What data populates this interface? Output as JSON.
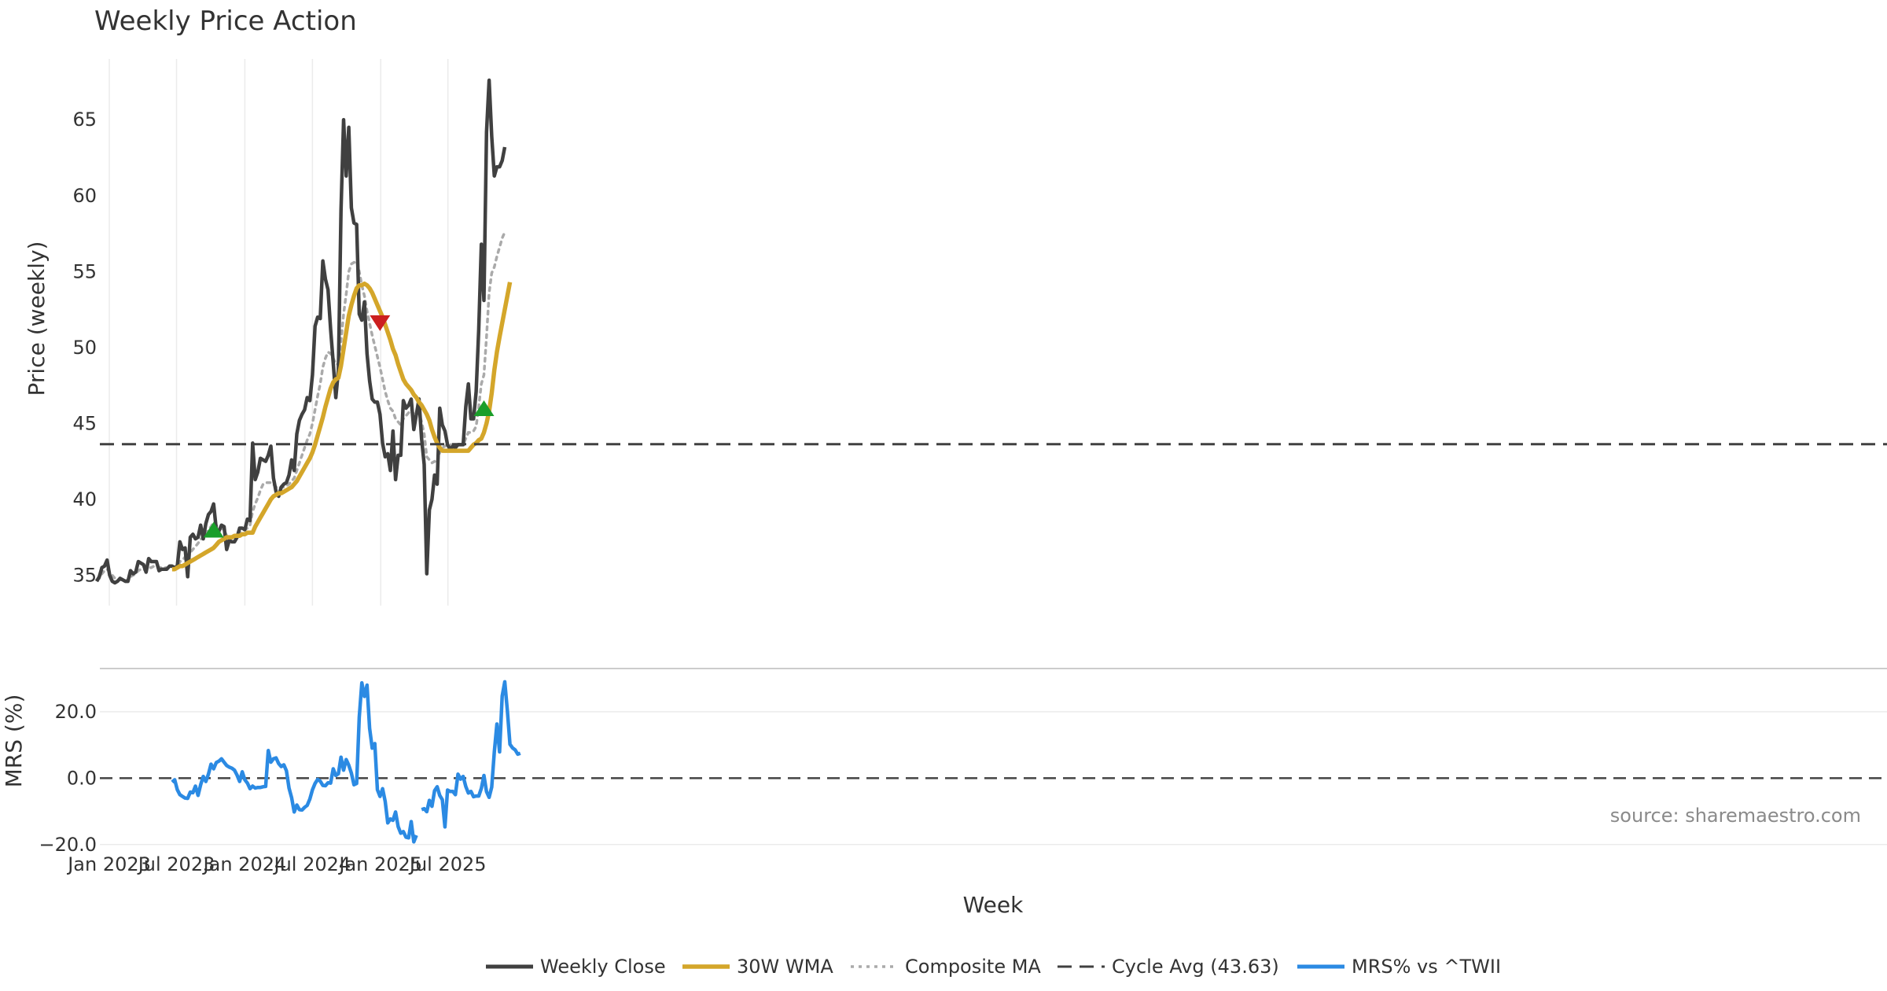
{
  "chart_data": {
    "type": "line",
    "title": "Weekly Price Action",
    "xlabel": "Week",
    "source": "source: sharemaestro.com",
    "x_ticks": [
      "Jan 2023",
      "Jul 2023",
      "Jan 2024",
      "Jul 2024",
      "Jan 2025",
      "Jul 2025"
    ],
    "start_date": "2022-11-28",
    "price_panel": {
      "ylabel": "Price (weekly)",
      "ylim": [
        33,
        69
      ],
      "yticks": [
        35,
        40,
        45,
        50,
        55,
        60,
        65
      ],
      "grid": "vertical"
    },
    "mrs_panel": {
      "ylabel": "MRS (%)",
      "ylim": [
        -21,
        33
      ],
      "yticks": [
        20.0,
        0.0,
        -20.0
      ],
      "ytick_labels": [
        "20.0",
        "0.0",
        "−20.0"
      ],
      "grid": "horizontal"
    },
    "series": [
      {
        "name": "Weekly Close",
        "color": "#404040",
        "style": "solid",
        "values": [
          34.6,
          34.9,
          35.5,
          35.6,
          36.0,
          35.0,
          34.6,
          34.5,
          34.6,
          34.8,
          34.7,
          34.6,
          34.6,
          35.3,
          35.1,
          35.2,
          35.9,
          35.8,
          35.7,
          35.2,
          36.1,
          35.9,
          35.9,
          35.9,
          35.3,
          35.4,
          35.4,
          35.4,
          35.6,
          35.6,
          35.5,
          35.6,
          37.2,
          36.7,
          36.8,
          34.9,
          37.5,
          37.7,
          37.4,
          37.5,
          38.3,
          37.4,
          38.4,
          39.0,
          39.2,
          39.7,
          38.0,
          37.9,
          38.3,
          38.2,
          36.7,
          37.3,
          37.2,
          37.2,
          37.5,
          38.1,
          38.1,
          38.0,
          38.7,
          38.6,
          43.7,
          41.3,
          41.8,
          42.7,
          42.6,
          42.5,
          42.9,
          43.5,
          41.4,
          40.5,
          40.2,
          40.8,
          41.0,
          41.1,
          41.6,
          42.6,
          41.9,
          44.3,
          45.2,
          45.6,
          45.9,
          46.7,
          46.5,
          48.2,
          51.4,
          52.0,
          51.9,
          55.7,
          54.5,
          53.8,
          51.2,
          49.0,
          46.7,
          48.5,
          59.0,
          65.0,
          61.3,
          64.5,
          59.2,
          58.2,
          58.1,
          52.2,
          51.8,
          53.0,
          49.6,
          47.8,
          46.6,
          46.4,
          46.4,
          45.6,
          43.7,
          42.8,
          43.0,
          41.9,
          44.5,
          41.3,
          42.9,
          42.9,
          46.5,
          46.0,
          46.2,
          46.6,
          44.6,
          45.6,
          46.6,
          44.0,
          42.3,
          35.1,
          39.3,
          40.0,
          41.6,
          41.0,
          46.0,
          44.9,
          44.5,
          43.6,
          43.3,
          43.5,
          43.4,
          43.6,
          43.6,
          43.6,
          46.1,
          47.6,
          45.3,
          45.3,
          47.1,
          51.2,
          56.8,
          53.1,
          64.2,
          67.6,
          63.9,
          61.3,
          61.9,
          61.9,
          62.3,
          63.2
        ]
      },
      {
        "name": "30W WMA",
        "color": "#d4a62a",
        "style": "solid",
        "start_index": 29,
        "values": [
          35.4,
          35.4,
          35.5,
          35.6,
          35.6,
          35.7,
          35.8,
          35.9,
          36.0,
          36.1,
          36.2,
          36.3,
          36.4,
          36.5,
          36.6,
          36.7,
          36.8,
          37.0,
          37.2,
          37.3,
          37.4,
          37.5,
          37.5,
          37.5,
          37.6,
          37.6,
          37.6,
          37.7,
          37.7,
          37.8,
          37.8,
          37.8,
          38.2,
          38.5,
          38.8,
          39.1,
          39.4,
          39.7,
          40.0,
          40.2,
          40.3,
          40.4,
          40.4,
          40.5,
          40.6,
          40.7,
          40.8,
          41.0,
          41.2,
          41.5,
          41.8,
          42.1,
          42.4,
          42.7,
          43.1,
          43.6,
          44.2,
          44.8,
          45.4,
          46.1,
          46.7,
          47.3,
          47.7,
          47.9,
          48.0,
          48.8,
          49.9,
          51.0,
          52.1,
          52.8,
          53.4,
          53.9,
          54.1,
          54.1,
          54.2,
          54.1,
          53.9,
          53.6,
          53.2,
          52.8,
          52.4,
          52.0,
          51.5,
          51.0,
          50.5,
          49.9,
          49.5,
          48.9,
          48.4,
          47.9,
          47.6,
          47.4,
          47.2,
          46.9,
          46.7,
          46.4,
          46.2,
          45.9,
          45.6,
          45.2,
          44.6,
          44.1,
          43.7,
          43.4,
          43.2,
          43.2,
          43.2,
          43.2,
          43.2,
          43.2,
          43.2,
          43.2,
          43.2,
          43.2,
          43.2,
          43.4,
          43.6,
          43.7,
          43.9,
          44.0,
          44.4,
          45.0,
          45.8,
          47.0,
          48.5,
          49.7,
          50.7,
          51.6,
          52.5,
          53.4,
          54.3
        ]
      },
      {
        "name": "Composite MA",
        "color": "#aaaaaa",
        "style": "dotted",
        "values": [
          34.7,
          34.8,
          35.1,
          35.3,
          35.4,
          35.2,
          35.0,
          34.8,
          34.7,
          34.7,
          34.7,
          34.7,
          34.6,
          34.9,
          35.0,
          35.1,
          35.3,
          35.4,
          35.4,
          35.3,
          35.5,
          35.5,
          35.6,
          35.6,
          35.5,
          35.5,
          35.5,
          35.5,
          35.5,
          35.5,
          35.5,
          35.5,
          35.9,
          36.0,
          36.2,
          36.0,
          36.5,
          36.7,
          36.9,
          37.1,
          37.4,
          37.4,
          37.7,
          38.0,
          38.2,
          38.5,
          38.3,
          38.1,
          38.1,
          38.0,
          37.6,
          37.5,
          37.5,
          37.5,
          37.6,
          37.8,
          37.9,
          38.0,
          38.1,
          38.3,
          39.2,
          39.7,
          40.1,
          40.6,
          41.0,
          41.1,
          41.1,
          41.1,
          41.0,
          40.8,
          40.7,
          40.8,
          40.8,
          40.9,
          41.0,
          41.2,
          41.4,
          41.9,
          42.4,
          42.9,
          43.4,
          43.9,
          44.3,
          45.0,
          45.9,
          46.8,
          47.6,
          48.7,
          49.3,
          49.7,
          49.6,
          49.3,
          48.9,
          48.9,
          50.4,
          52.2,
          53.5,
          55.0,
          55.5,
          55.6,
          55.7,
          55.0,
          54.1,
          53.4,
          52.4,
          51.6,
          50.8,
          50.1,
          49.4,
          48.7,
          47.9,
          47.1,
          46.5,
          46.0,
          45.8,
          45.3,
          45.1,
          44.9,
          45.3,
          45.5,
          45.7,
          45.9,
          45.6,
          45.6,
          45.7,
          45.1,
          44.3,
          42.8,
          42.6,
          42.4,
          42.5,
          42.4,
          43.1,
          43.4,
          43.5,
          43.6,
          43.6,
          43.6,
          43.6,
          43.6,
          43.6,
          43.6,
          44.0,
          44.4,
          44.4,
          44.5,
          44.8,
          46.1,
          47.6,
          48.2,
          50.7,
          53.6,
          54.9,
          55.3,
          56.0,
          56.6,
          57.2,
          57.6
        ]
      },
      {
        "name": "Cycle Avg (43.63)",
        "color": "#404040",
        "style": "dashed",
        "value": 43.63
      },
      {
        "name": "MRS% vs ^TWII",
        "color": "#2b8ae3",
        "style": "solid",
        "start_index": 29,
        "values": [
          -1.2,
          -0.5,
          -3.5,
          -5.0,
          -5.5,
          -6.0,
          -6.1,
          -4.2,
          -4.4,
          -2.4,
          -5.2,
          -2.0,
          0.5,
          -1.0,
          1.2,
          4.2,
          2.8,
          4.7,
          5.1,
          5.8,
          4.8,
          3.8,
          3.3,
          3.0,
          2.4,
          0.9,
          -1.0,
          1.9,
          -0.5,
          -1.5,
          -3.2,
          -2.4,
          -3.0,
          -2.8,
          -2.8,
          -2.6,
          -2.5,
          8.3,
          4.8,
          5.8,
          6.1,
          4.4,
          3.5,
          4.0,
          2.2,
          -3.0,
          -5.9,
          -10.2,
          -8.1,
          -9.5,
          -9.6,
          -8.8,
          -8.2,
          -6.3,
          -3.5,
          -1.6,
          -0.4,
          -0.9,
          -2.2,
          -2.3,
          -1.4,
          -1.5,
          2.8,
          0.8,
          1.3,
          6.3,
          2.4,
          5.6,
          3.9,
          1.5,
          -2.0,
          -1.6,
          18.3,
          28.7,
          24.6,
          28.0,
          15.0,
          9.0,
          10.4,
          -3.5,
          -5.5,
          -3.2,
          -7.0,
          -13.5,
          -12.3,
          -12.7,
          -10.2,
          -14.6,
          -16.6,
          -16.1,
          -17.8,
          -18.0,
          -13.1,
          -19.2,
          -17.2,
          null,
          -9.5,
          -9.2,
          -10.1,
          -6.7,
          -8.5,
          -3.8,
          -2.6,
          -5.2,
          -6.5,
          -14.7,
          -3.6,
          -4.0,
          -4.0,
          -5.0,
          1.2,
          -0.3,
          0.5,
          -2.5,
          -4.5,
          -4.0,
          -5.6,
          -5.4,
          -5.4,
          -3.1,
          0.8,
          -4.1,
          -5.8,
          -2.7,
          7.9,
          16.3,
          7.9,
          24.7,
          29.0,
          20.3,
          10.2,
          9.1,
          8.5,
          7.2,
          7.5
        ]
      }
    ],
    "signals": [
      {
        "type": "buy",
        "index": 45,
        "value": 38.0,
        "color": "#1a9e2a"
      },
      {
        "type": "sell",
        "index": 109,
        "value": 51.6,
        "color": "#cc1f1f"
      },
      {
        "type": "buy",
        "index": 149,
        "value": 46.0,
        "color": "#1a9e2a"
      }
    ],
    "legend": {
      "placement": "bottom-center",
      "items": [
        "Weekly Close",
        "30W WMA",
        "Composite MA",
        "Cycle Avg (43.63)",
        "MRS% vs ^TWII"
      ]
    }
  }
}
